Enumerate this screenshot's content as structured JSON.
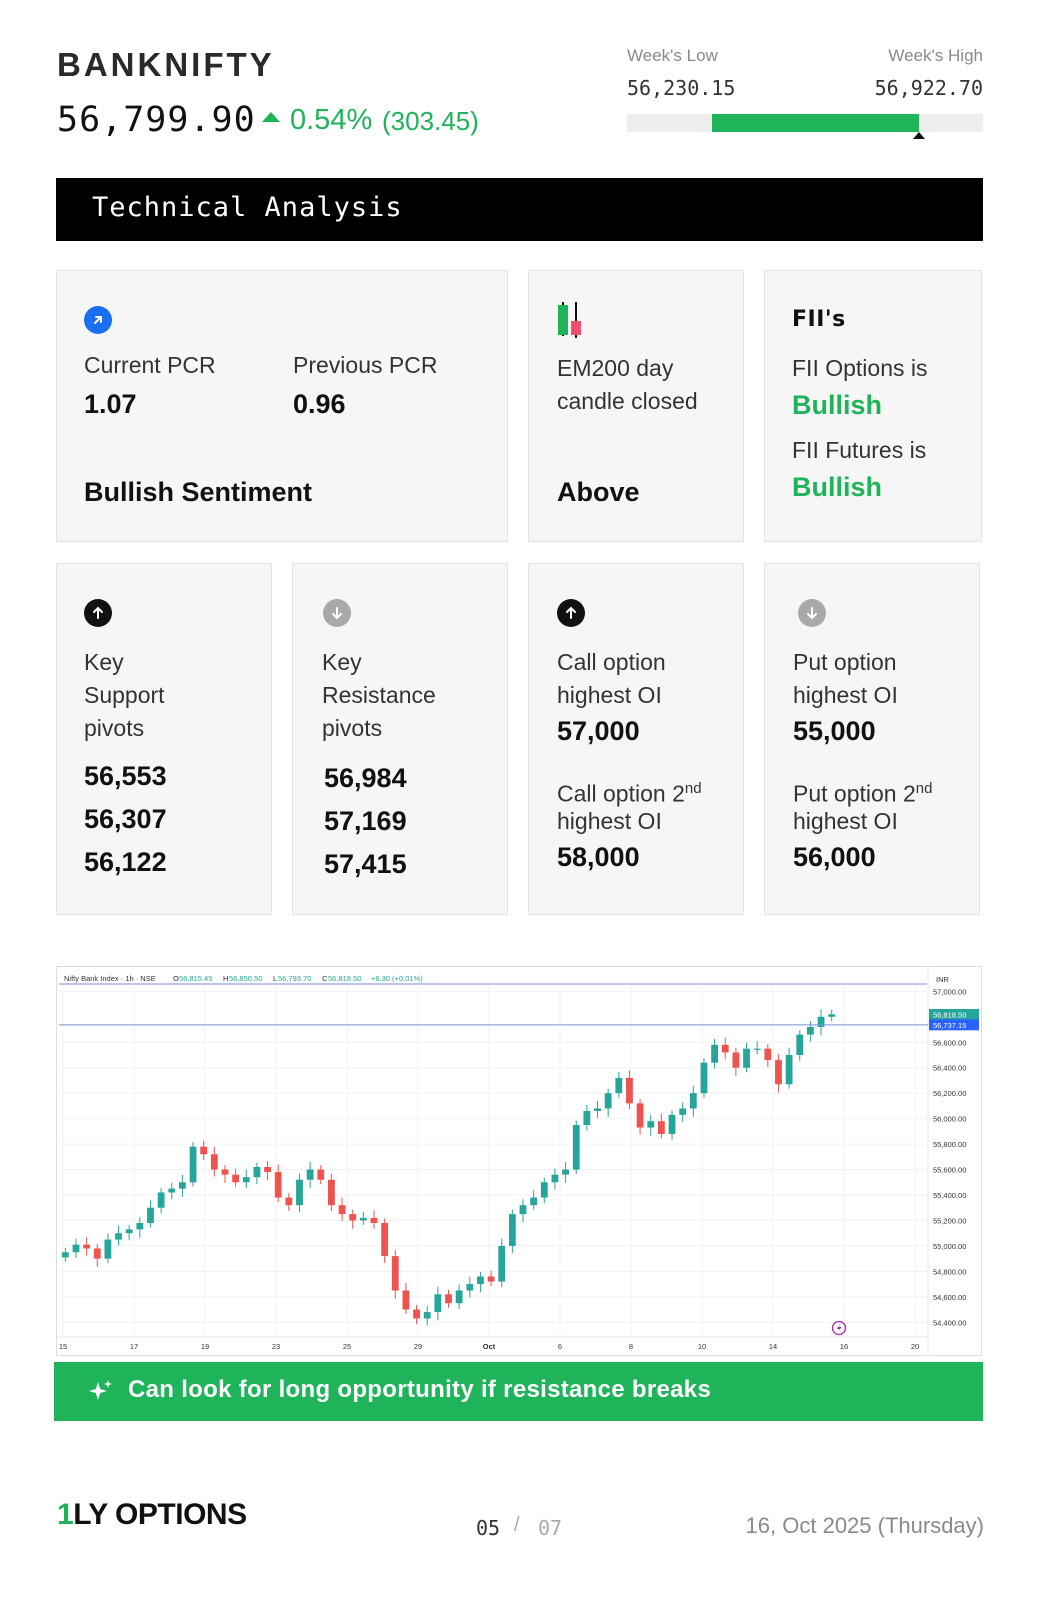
{
  "header": {
    "ticker": "BANKNIFTY",
    "price": "56,799.90",
    "change_pct": "0.54%",
    "change_abs": "(303.45)",
    "direction": "up"
  },
  "week_range": {
    "low_label": "Week's Low",
    "high_label": "Week's High",
    "low_value": "56,230.15",
    "high_value": "56,922.70",
    "filled_from_fraction": 0.24,
    "filled_to_fraction": 0.82,
    "marker_fraction": 0.82
  },
  "section_title": "Technical Analysis",
  "pcr_card": {
    "icon": "arrow-up-right-icon",
    "current_label": "Current PCR",
    "current_value": "1.07",
    "previous_label": "Previous PCR",
    "previous_value": "0.96",
    "sentiment": "Bullish Sentiment"
  },
  "ema_card": {
    "icon": "candlestick-icon",
    "label_line1": "EM200 day",
    "label_line2": "candle closed",
    "value": "Above"
  },
  "fii_card": {
    "title": "FII's",
    "options_label": "FII Options is",
    "options_value": "Bullish",
    "futures_label": "FII Futures is",
    "futures_value": "Bullish"
  },
  "support_card": {
    "icon": "arrow-up-circle-icon",
    "label_line1": "Key",
    "label_line2": "Support",
    "label_line3": "pivots",
    "values": [
      "56,553",
      "56,307",
      "56,122"
    ]
  },
  "resistance_card": {
    "icon": "arrow-down-circle-icon",
    "label_line1": "Key",
    "label_line2": "Resistance",
    "label_line3": "pivots",
    "values": [
      "56,984",
      "57,169",
      "57,415"
    ]
  },
  "call_card": {
    "icon": "arrow-up-circle-icon",
    "label1_line1": "Call option",
    "label1_line2": "highest OI",
    "value1": "57,000",
    "label2_line1_pre": "Call option 2",
    "label2_sup": "nd",
    "label2_line2": "highest OI",
    "value2": "58,000"
  },
  "put_card": {
    "icon": "arrow-down-circle-icon",
    "label1_line1": "Put option",
    "label1_line2": "highest OI",
    "value1": "55,000",
    "label2_line1_pre": "Put option 2",
    "label2_sup": "nd",
    "label2_line2": "highest OI",
    "value2": "56,000"
  },
  "chart_data": {
    "type": "candlestick",
    "title": "Nifty Bank Index · 1h · NSE",
    "ohlc_header": {
      "o_label": "O",
      "o": "56,815.45",
      "h_label": "H",
      "h": "56,850.50",
      "l_label": "L",
      "l": "56,793.70",
      "c_label": "C",
      "c": "56,818.50",
      "change": "+6.30 (+0.01%)"
    },
    "currency": "INR",
    "y_ticks": [
      "57,000.00",
      "56,600.00",
      "56,400.00",
      "56,200.00",
      "56,000.00",
      "55,800.00",
      "55,600.00",
      "55,400.00",
      "55,200.00",
      "55,000.00",
      "54,800.00",
      "54,600.00",
      "54,400.00"
    ],
    "ylim": [
      54300,
      57050
    ],
    "price_tags": [
      {
        "value": "56,818.50",
        "color": "#26a69a"
      },
      {
        "value": "56,737.15",
        "color": "#2962ff"
      }
    ],
    "x_ticks": [
      "15",
      "17",
      "19",
      "23",
      "25",
      "29",
      "Oct",
      "6",
      "8",
      "10",
      "14",
      "16",
      "20"
    ],
    "closes": [
      54950,
      55010,
      54980,
      54900,
      55050,
      55100,
      55130,
      55180,
      55300,
      55420,
      55450,
      55500,
      55780,
      55720,
      55600,
      55560,
      55500,
      55540,
      55620,
      55580,
      55380,
      55320,
      55520,
      55600,
      55520,
      55320,
      55250,
      55200,
      55220,
      55180,
      54920,
      54650,
      54500,
      54430,
      54480,
      54620,
      54550,
      54650,
      54700,
      54760,
      54720,
      55000,
      55250,
      55320,
      55380,
      55500,
      55560,
      55600,
      55950,
      56060,
      56080,
      56200,
      56320,
      56120,
      55930,
      55980,
      55880,
      56030,
      56080,
      56200,
      56440,
      56580,
      56520,
      56400,
      56550,
      56550,
      56460,
      56270,
      56500,
      56660,
      56720,
      56800,
      56820
    ],
    "colors": {
      "up": "#26a69a",
      "down": "#ef5350"
    }
  },
  "banner": {
    "icon": "sparkle-icon",
    "text": "Can look for long opportunity if resistance breaks"
  },
  "footer": {
    "logo_num": "1",
    "logo_text": "LY OPTIONS",
    "page_current": "05",
    "page_sep": "/",
    "page_total": "07",
    "date": "16, Oct 2025 (Thursday)"
  }
}
